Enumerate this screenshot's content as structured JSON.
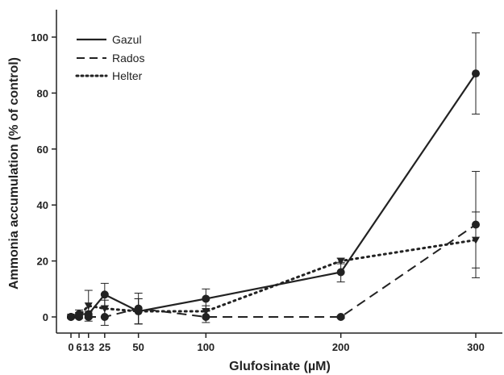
{
  "chart_data": {
    "type": "line",
    "xlabel": "Glufosinate (µM)",
    "ylabel": "Ammonia accumulation (% of control)",
    "xlim": [
      0,
      318
    ],
    "ylim": [
      0,
      103
    ],
    "x_ticks": [
      0,
      6,
      13,
      25,
      50,
      100,
      200,
      300
    ],
    "x_tick_labels": [
      "0",
      "6",
      "13",
      "25",
      "50",
      "100",
      "200",
      "300"
    ],
    "y_ticks": [
      0,
      20,
      40,
      60,
      80,
      100
    ],
    "y_tick_labels": [
      "0",
      "20",
      "40",
      "60",
      "80",
      "100"
    ],
    "legend_position": "top-left",
    "series": [
      {
        "name": "Gazul",
        "style": "solid",
        "marker": "circle",
        "x": [
          0,
          6,
          13,
          25,
          50,
          100,
          200,
          300
        ],
        "y": [
          0,
          1.0,
          1.0,
          8.0,
          2.0,
          6.5,
          16.0,
          87.0
        ],
        "err": [
          0.5,
          1.5,
          1.0,
          4.0,
          4.5,
          3.5,
          3.5,
          14.5
        ]
      },
      {
        "name": "Rados",
        "style": "dashed",
        "marker": "circle",
        "x": [
          0,
          6,
          13,
          25,
          50,
          100,
          200,
          300
        ],
        "y": [
          0,
          0,
          0,
          0,
          3.0,
          0,
          0,
          33.0
        ],
        "err": [
          0.3,
          0.5,
          0.5,
          3.0,
          5.5,
          2.0,
          0.5,
          19.0
        ]
      },
      {
        "name": "Helter",
        "style": "dotted",
        "marker": "triangle",
        "x": [
          0,
          6,
          13,
          25,
          50,
          100,
          200,
          300
        ],
        "y": [
          0,
          0.5,
          4.0,
          3.0,
          2.0,
          2.0,
          20.0,
          27.5
        ],
        "err": [
          0.3,
          1.0,
          5.5,
          3.0,
          4.5,
          2.0,
          1.0,
          10.0
        ]
      }
    ]
  }
}
